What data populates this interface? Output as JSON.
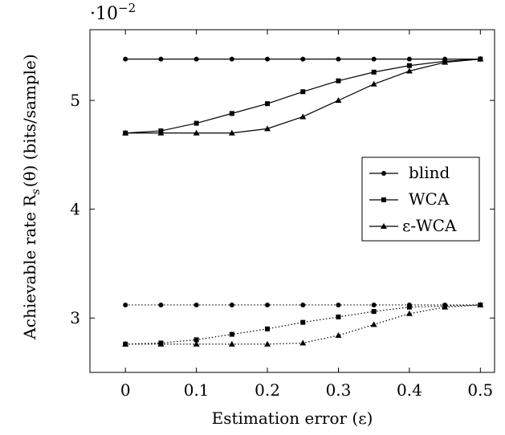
{
  "chart_data": {
    "type": "line",
    "title": "",
    "xlabel": "Estimation error (ε)",
    "ylabel": "Achievable rate R",
    "ylabel_sub": "s",
    "ylabel_tail": "(θ) (bits/sample)",
    "y_scale_prefix": "·10",
    "y_scale_exponent": "−2",
    "xlim": [
      -0.05,
      0.52
    ],
    "ylim": [
      2.5,
      5.65
    ],
    "x_ticks": [
      0,
      0.1,
      0.2,
      0.3,
      0.4,
      0.5
    ],
    "x_tick_labels": [
      "0",
      "0.1",
      "0.2",
      "0.3",
      "0.4",
      "0.5"
    ],
    "y_ticks": [
      3,
      4,
      5
    ],
    "y_tick_labels": [
      "3",
      "4",
      "5"
    ],
    "grid": false,
    "legend_position": "right-middle",
    "x": [
      0,
      0.05,
      0.1,
      0.15,
      0.2,
      0.25,
      0.3,
      0.35,
      0.4,
      0.45,
      0.5
    ],
    "series": [
      {
        "name": "blind",
        "marker": "circle",
        "dash": "solid",
        "values": [
          5.38,
          5.38,
          5.38,
          5.38,
          5.38,
          5.38,
          5.38,
          5.38,
          5.38,
          5.38,
          5.38
        ]
      },
      {
        "name": "WCA",
        "marker": "square",
        "dash": "solid",
        "values": [
          4.7,
          4.72,
          4.79,
          4.88,
          4.97,
          5.08,
          5.18,
          5.26,
          5.32,
          5.36,
          5.38
        ]
      },
      {
        "name": "ε-WCA",
        "marker": "triangle",
        "dash": "solid",
        "values": [
          4.7,
          4.7,
          4.7,
          4.7,
          4.74,
          4.85,
          5.0,
          5.15,
          5.27,
          5.35,
          5.38
        ]
      },
      {
        "name": "",
        "marker": "circle",
        "dash": "dotted",
        "values": [
          3.12,
          3.12,
          3.12,
          3.12,
          3.12,
          3.12,
          3.12,
          3.12,
          3.12,
          3.12,
          3.12
        ]
      },
      {
        "name": "",
        "marker": "square",
        "dash": "dotted",
        "values": [
          2.76,
          2.77,
          2.8,
          2.85,
          2.9,
          2.96,
          3.01,
          3.06,
          3.1,
          3.11,
          3.12
        ]
      },
      {
        "name": "",
        "marker": "triangle",
        "dash": "dotted",
        "values": [
          2.76,
          2.76,
          2.76,
          2.76,
          2.76,
          2.77,
          2.84,
          2.94,
          3.04,
          3.1,
          3.12
        ]
      }
    ]
  }
}
